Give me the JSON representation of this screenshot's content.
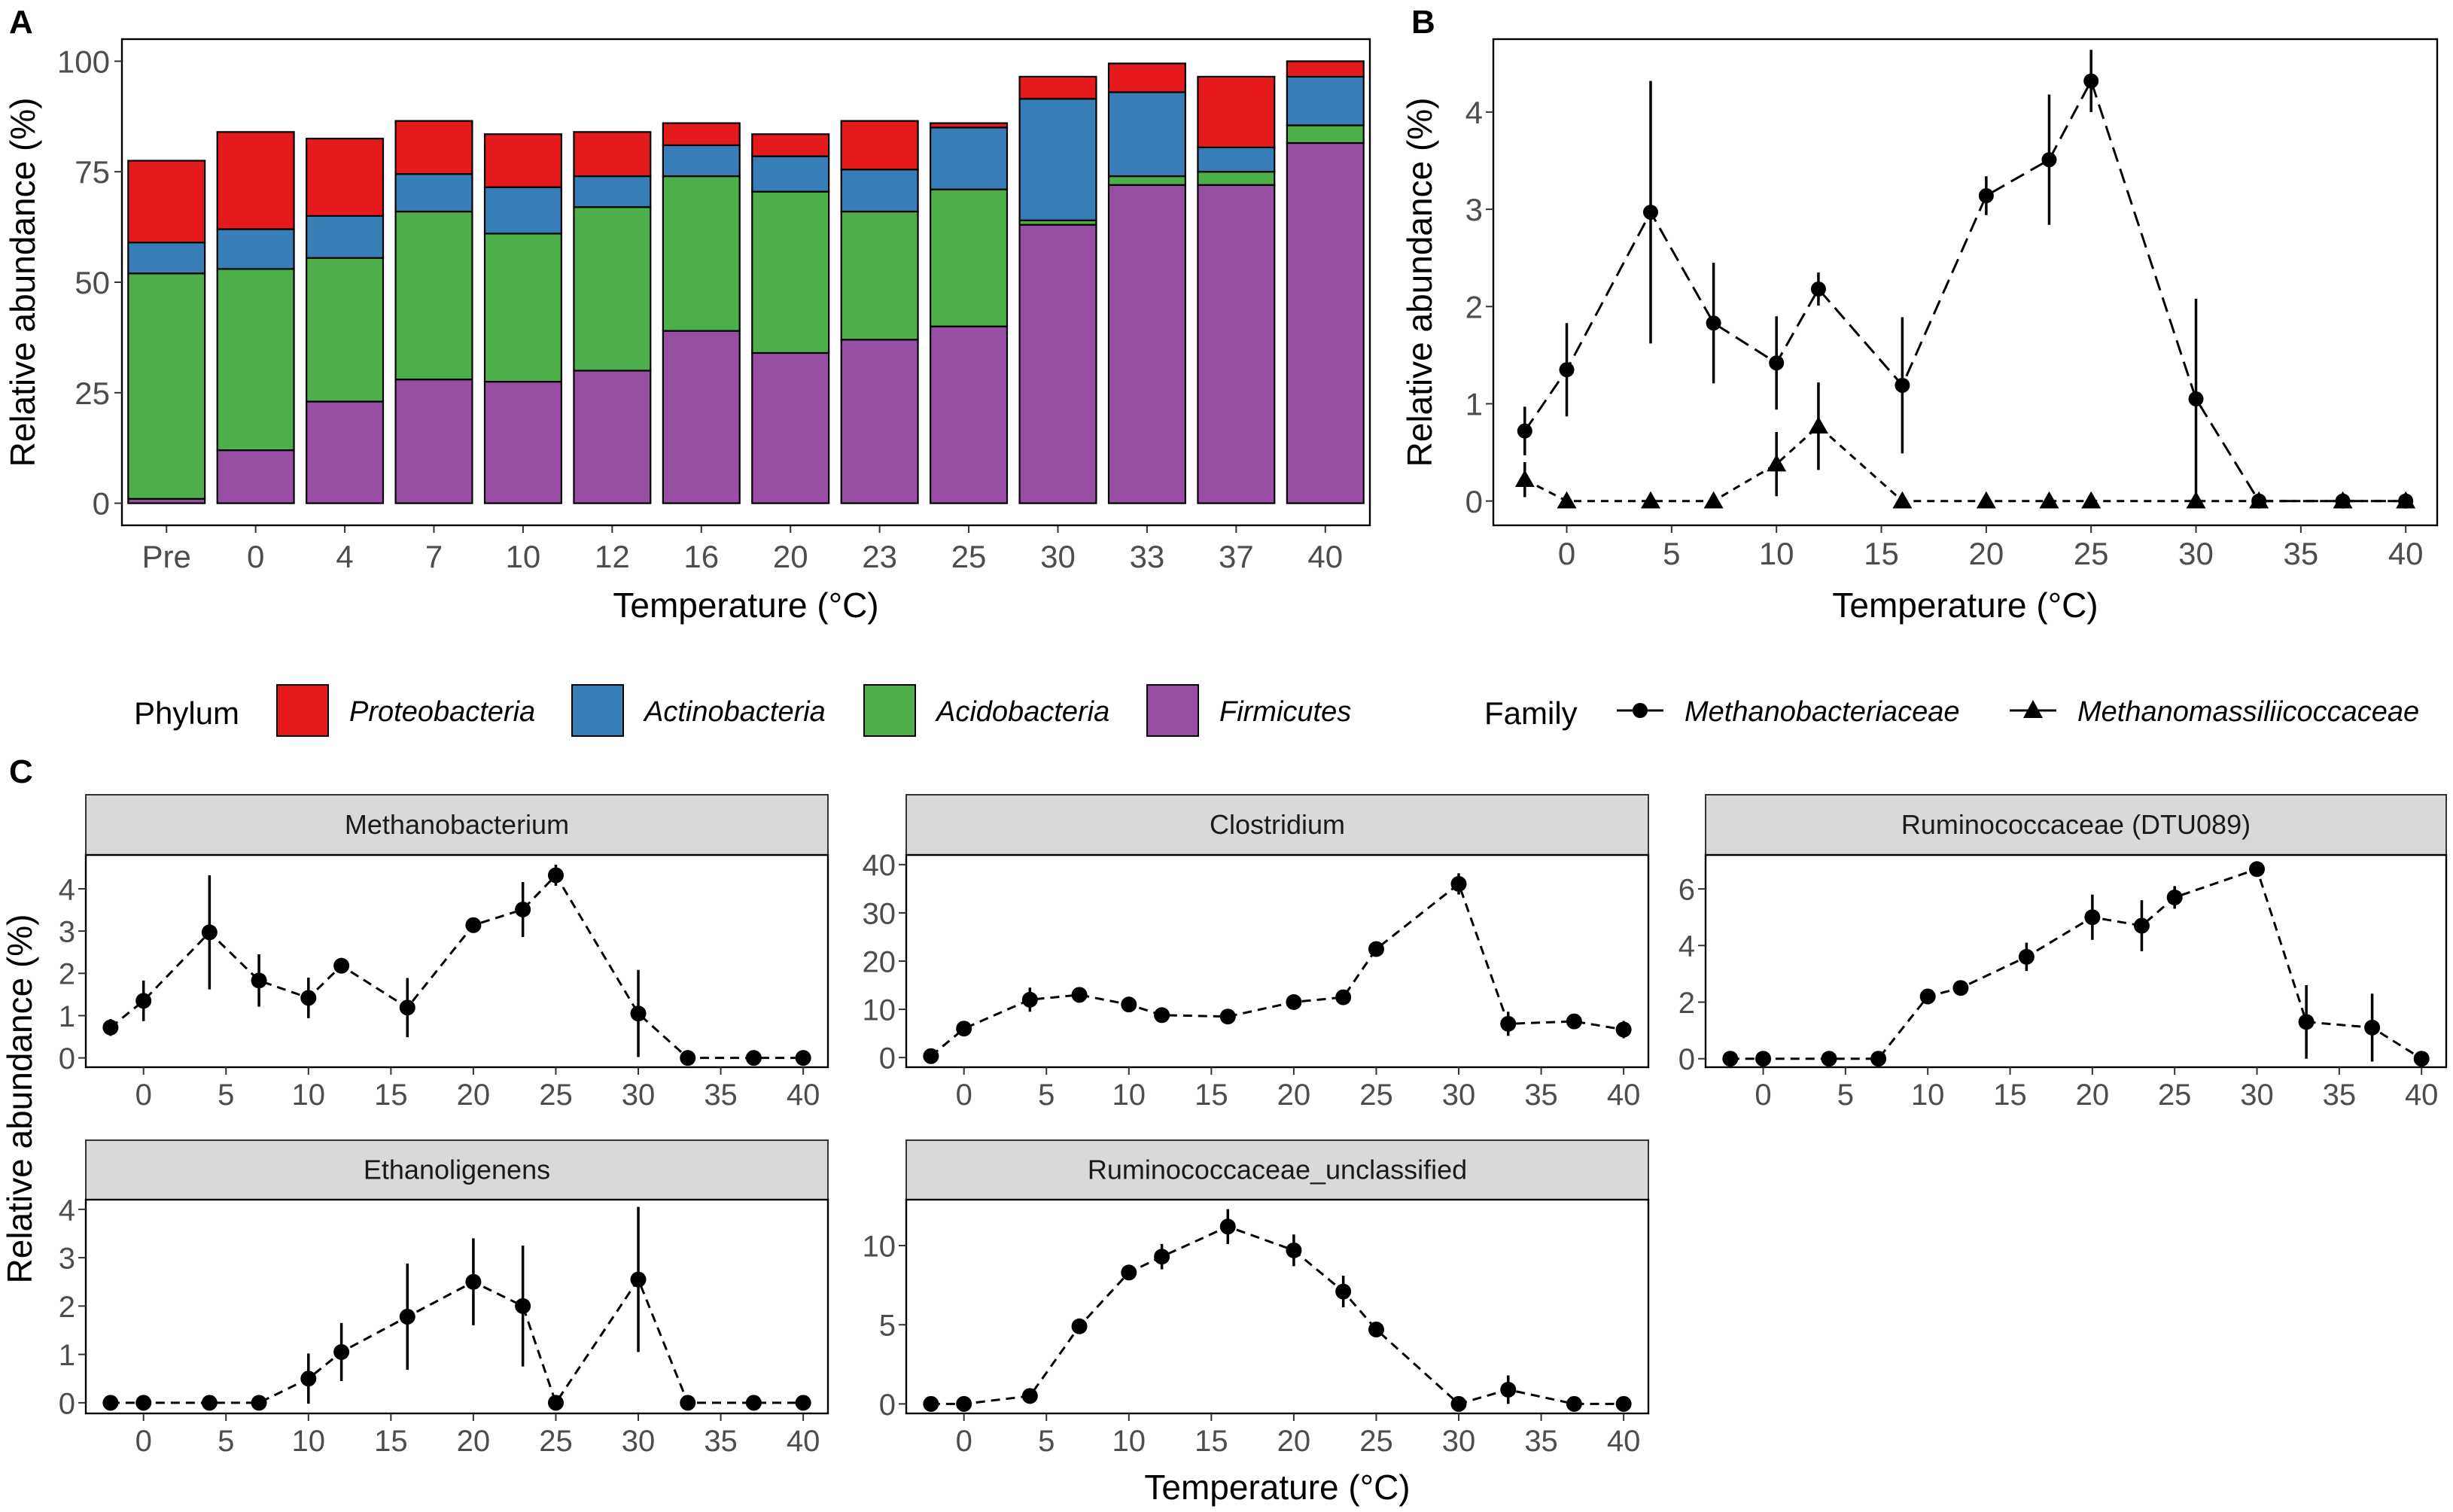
{
  "colors": {
    "proteobacteria": "#E41A1C",
    "actinobacteria": "#377EB8",
    "acidobacteria": "#4DAF4A",
    "firmicutes": "#984EA3",
    "strip_fill": "#D9D9D9",
    "axis": "#000000",
    "tick_text": "#4D4D4D"
  },
  "panel_labels": {
    "a": "A",
    "b": "B",
    "c": "C"
  },
  "legend_phylum": {
    "title": "Phylum",
    "items": [
      "Proteobacteria",
      "Actinobacteria",
      "Acidobacteria",
      "Firmicutes"
    ]
  },
  "legend_family": {
    "title": "Family",
    "items": [
      "Methanobacteriaceae",
      "Methanomassiliicoccaceae"
    ]
  },
  "chart_data": [
    {
      "id": "A",
      "type": "bar",
      "stacked": true,
      "xlabel": "Temperature (°C)",
      "ylabel": "Relative abundance (%)",
      "ylim": [
        0,
        100
      ],
      "yticks": [
        0,
        25,
        50,
        75,
        100
      ],
      "categories": [
        "Pre",
        "0",
        "4",
        "7",
        "10",
        "12",
        "16",
        "20",
        "23",
        "25",
        "30",
        "33",
        "37",
        "40"
      ],
      "series": [
        {
          "name": "Firmicutes",
          "values": [
            1,
            12,
            23,
            28,
            27.5,
            30,
            39,
            34,
            37,
            40,
            63,
            72,
            72,
            81.5
          ]
        },
        {
          "name": "Acidobacteria",
          "values": [
            51,
            41,
            32.5,
            38,
            33.5,
            37,
            35,
            36.5,
            29,
            31,
            1,
            2,
            3,
            4
          ]
        },
        {
          "name": "Actinobacteria",
          "values": [
            7,
            9,
            9.5,
            8.5,
            10.5,
            7,
            7,
            8,
            9.5,
            14,
            27.5,
            19,
            5.5,
            11
          ]
        },
        {
          "name": "Proteobacteria",
          "values": [
            18.5,
            22,
            17.5,
            12,
            12,
            10,
            5,
            5,
            11,
            1,
            5,
            6.5,
            16,
            3.5
          ]
        }
      ]
    },
    {
      "id": "B",
      "type": "line",
      "xlabel": "Temperature (°C)",
      "ylabel": "Relative abundance (%)",
      "xlim": [
        -3.5,
        41.5
      ],
      "ylim": [
        -0.25,
        4.75
      ],
      "xticks": [
        0,
        5,
        10,
        15,
        20,
        25,
        30,
        35,
        40
      ],
      "yticks": [
        0,
        1,
        2,
        3,
        4
      ],
      "series": [
        {
          "name": "Methanobacteriaceae",
          "marker": "circle",
          "x": [
            -2,
            0,
            4,
            7,
            10,
            12,
            16,
            20,
            23,
            25,
            30,
            33,
            37,
            40
          ],
          "y": [
            0.72,
            1.35,
            2.97,
            1.83,
            1.42,
            2.18,
            1.19,
            3.14,
            3.51,
            4.32,
            1.05,
            0,
            0,
            0
          ],
          "err": [
            0.25,
            0.48,
            1.35,
            0.62,
            0.48,
            0.17,
            0.7,
            0.2,
            0.67,
            0.32,
            1.03,
            0,
            0,
            0
          ]
        },
        {
          "name": "Methanomassiliicoccaceae",
          "marker": "triangle",
          "x": [
            -2,
            0,
            4,
            7,
            10,
            12,
            16,
            20,
            23,
            25,
            30,
            33,
            37,
            40
          ],
          "y": [
            0.22,
            0,
            0,
            0,
            0.38,
            0.77,
            0,
            0,
            0,
            0,
            0,
            0,
            0,
            0
          ],
          "err": [
            0.18,
            0,
            0,
            0,
            0.33,
            0.45,
            0,
            0,
            0,
            0,
            0,
            0,
            0,
            0
          ]
        }
      ]
    },
    {
      "id": "C",
      "type": "line",
      "xlabel": "Temperature (°C)",
      "ylabel": "Relative abundance (%)",
      "facets": [
        {
          "title": "Methanobacterium",
          "ylim": [
            -0.22,
            4.8
          ],
          "yticks": [
            0,
            1,
            2,
            3,
            4
          ],
          "x": [
            -2,
            0,
            4,
            7,
            10,
            12,
            16,
            20,
            23,
            25,
            30,
            33,
            37,
            40
          ],
          "y": [
            0.72,
            1.35,
            2.97,
            1.83,
            1.42,
            2.18,
            1.19,
            3.14,
            3.51,
            4.32,
            1.05,
            0,
            0,
            0
          ],
          "err": [
            0.2,
            0.48,
            1.35,
            0.62,
            0.48,
            0.1,
            0.7,
            0.12,
            0.65,
            0.25,
            1.03,
            0,
            0,
            0
          ]
        },
        {
          "title": "Clostridium",
          "ylim": [
            -2,
            42
          ],
          "yticks": [
            0,
            10,
            20,
            30,
            40
          ],
          "x": [
            -2,
            0,
            4,
            7,
            10,
            12,
            16,
            20,
            23,
            25,
            30,
            33,
            37,
            40
          ],
          "y": [
            0.3,
            6,
            12,
            13,
            11,
            8.8,
            8.5,
            11.5,
            12.5,
            22.5,
            36,
            7,
            7.5,
            5.8
          ],
          "err": [
            0,
            0.5,
            2.5,
            0.8,
            0.7,
            0.6,
            0.6,
            0.7,
            0.5,
            0.6,
            2.2,
            2.5,
            1.2,
            1.8
          ]
        },
        {
          "title": "Ruminococcaceae (DTU089)",
          "ylim": [
            -0.3,
            7.2
          ],
          "yticks": [
            0,
            2,
            4,
            6
          ],
          "x": [
            -2,
            0,
            4,
            7,
            10,
            12,
            16,
            20,
            23,
            25,
            30,
            33,
            37,
            40
          ],
          "y": [
            0,
            0,
            0,
            0,
            2.2,
            2.5,
            3.6,
            5,
            4.7,
            5.7,
            6.7,
            1.3,
            1.1,
            0
          ],
          "err": [
            0,
            0,
            0,
            0,
            0.15,
            0.15,
            0.5,
            0.8,
            0.9,
            0.4,
            0.1,
            1.3,
            1.2,
            0
          ]
        },
        {
          "title": "Ethanoligenens",
          "ylim": [
            -0.22,
            4.2
          ],
          "yticks": [
            0,
            1,
            2,
            3,
            4
          ],
          "x": [
            -2,
            0,
            4,
            7,
            10,
            12,
            16,
            20,
            23,
            25,
            30,
            33,
            37,
            40
          ],
          "y": [
            0,
            0,
            0,
            0,
            0.5,
            1.05,
            1.78,
            2.5,
            2,
            0,
            2.55,
            0,
            0,
            0
          ],
          "err": [
            0,
            0,
            0,
            0,
            0.52,
            0.6,
            1.1,
            0.9,
            1.25,
            0,
            1.5,
            0,
            0,
            0
          ]
        },
        {
          "title": "Ruminococcaceae_unclassified",
          "ylim": [
            -0.6,
            12.9
          ],
          "yticks": [
            0,
            5,
            10
          ],
          "x": [
            -2,
            0,
            4,
            7,
            10,
            12,
            16,
            20,
            23,
            25,
            30,
            33,
            37,
            40
          ],
          "y": [
            0,
            0,
            0.5,
            4.9,
            8.3,
            9.3,
            11.2,
            9.7,
            7.1,
            4.7,
            0,
            0.9,
            0,
            0
          ],
          "err": [
            0,
            0,
            0,
            0,
            0.3,
            0.8,
            1.1,
            1,
            1,
            0.3,
            0,
            0.9,
            0,
            0
          ]
        }
      ],
      "xticks": [
        0,
        5,
        10,
        15,
        20,
        25,
        30,
        35,
        40
      ]
    }
  ]
}
